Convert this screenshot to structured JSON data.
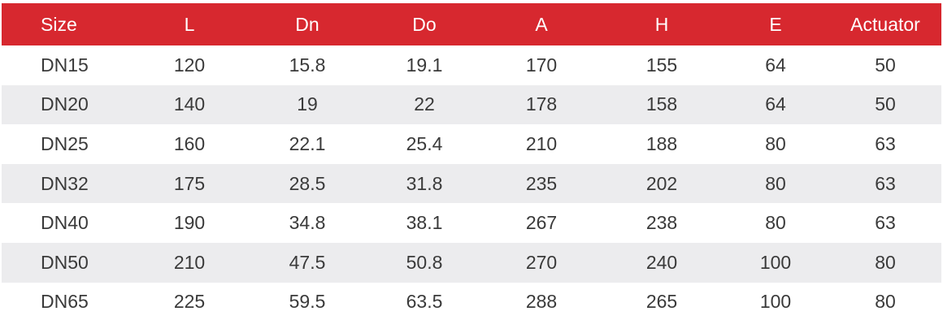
{
  "table": {
    "headers": [
      "Size",
      "L",
      "Dn",
      "Do",
      "A",
      "H",
      "E",
      "Actuator"
    ],
    "rows": [
      [
        "DN15",
        "120",
        "15.8",
        "19.1",
        "170",
        "155",
        "64",
        "50"
      ],
      [
        "DN20",
        "140",
        "19",
        "22",
        "178",
        "158",
        "64",
        "50"
      ],
      [
        "DN25",
        "160",
        "22.1",
        "25.4",
        "210",
        "188",
        "80",
        "63"
      ],
      [
        "DN32",
        "175",
        "28.5",
        "31.8",
        "235",
        "202",
        "80",
        "63"
      ],
      [
        "DN40",
        "190",
        "34.8",
        "38.1",
        "267",
        "238",
        "80",
        "63"
      ],
      [
        "DN50",
        "210",
        "47.5",
        "50.8",
        "270",
        "240",
        "100",
        "80"
      ],
      [
        "DN65",
        "225",
        "59.5",
        "63.5",
        "288",
        "265",
        "100",
        "80"
      ]
    ]
  },
  "colors": {
    "header_background": "#d7282f",
    "header_text": "#ffffff",
    "alt_row_background": "#ececee",
    "body_text": "#3a3a3a"
  }
}
